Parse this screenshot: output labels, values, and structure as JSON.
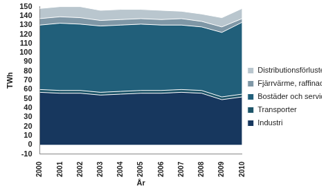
{
  "chart_data": {
    "type": "area",
    "stacked": true,
    "x_label": "År",
    "y_label": "TWh",
    "categories": [
      "2000",
      "2001",
      "2002",
      "2003",
      "2004",
      "2005",
      "2006",
      "2007",
      "2008",
      "2009",
      "2010"
    ],
    "ylim": [
      -10,
      150
    ],
    "yticks": [
      -10,
      0,
      10,
      20,
      30,
      40,
      50,
      60,
      70,
      80,
      90,
      100,
      110,
      120,
      130,
      140,
      150
    ],
    "grid": false,
    "legend": "right",
    "series": [
      {
        "name": "Industri",
        "color": "#17375e",
        "values": [
          57,
          56,
          56,
          54,
          55,
          56,
          56,
          57,
          56,
          49,
          52
        ]
      },
      {
        "name": "Transporter",
        "color": "#1d5468",
        "values": [
          3,
          3,
          3,
          3,
          3,
          3,
          3,
          3,
          3,
          3,
          3
        ]
      },
      {
        "name": "Bostäder och service",
        "color": "#215f7a",
        "values": [
          70,
          73,
          72,
          72,
          72,
          72,
          71,
          70,
          69,
          70,
          78
        ]
      },
      {
        "name": "Fjärrvärme, raffinaderier",
        "color": "#7f97a6",
        "values": [
          7,
          7,
          7,
          6,
          6,
          6,
          6,
          7,
          6,
          6,
          4
        ]
      },
      {
        "name": "Distributionsförluster",
        "color": "#b9c6ce",
        "values": [
          11,
          11,
          12,
          11,
          11,
          10,
          10,
          8,
          8,
          10,
          11
        ]
      }
    ]
  }
}
